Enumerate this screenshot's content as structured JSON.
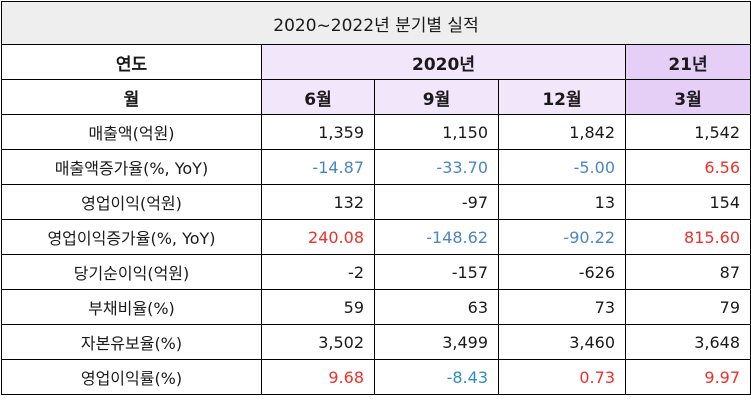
{
  "title": "2020~2022년 분기별 실적",
  "header": {
    "year_label": "연도",
    "year_2020": "2020년",
    "year_21": "21년",
    "month_label": "월",
    "months": [
      "6월",
      "9월",
      "12월",
      "3월"
    ]
  },
  "rows": [
    {
      "label": "매출액(억원)",
      "values": [
        "1,359",
        "1,150",
        "1,842",
        "1,542"
      ]
    },
    {
      "label": "매출액증가율(%, YoY)",
      "values": [
        "-14.87",
        "-33.70",
        "-5.00",
        "6.56"
      ]
    },
    {
      "label": "영업이익(억원)",
      "values": [
        "132",
        "-97",
        "13",
        "154"
      ]
    },
    {
      "label": "영업이익증가율(%, YoY)",
      "values": [
        "240.08",
        "-148.62",
        "-90.22",
        "815.60"
      ]
    },
    {
      "label": "당기순이익(억원)",
      "values": [
        "-2",
        "-157",
        "-626",
        "87"
      ]
    },
    {
      "label": "부채비율(%)",
      "values": [
        "59",
        "63",
        "73",
        "79"
      ]
    },
    {
      "label": "자본유보율(%)",
      "values": [
        "3,502",
        "3,499",
        "3,460",
        "3,648"
      ]
    },
    {
      "label": "영업이익률(%)",
      "values": [
        "9.68",
        "-8.43",
        "0.73",
        "9.97"
      ]
    }
  ],
  "colors": {
    "header_light": "#f2e6fb",
    "header_deep": "#e6cff7",
    "negative_blue": "#4a86c5",
    "positive_red": "#f0302a",
    "title_bg": "#eeeeee"
  }
}
